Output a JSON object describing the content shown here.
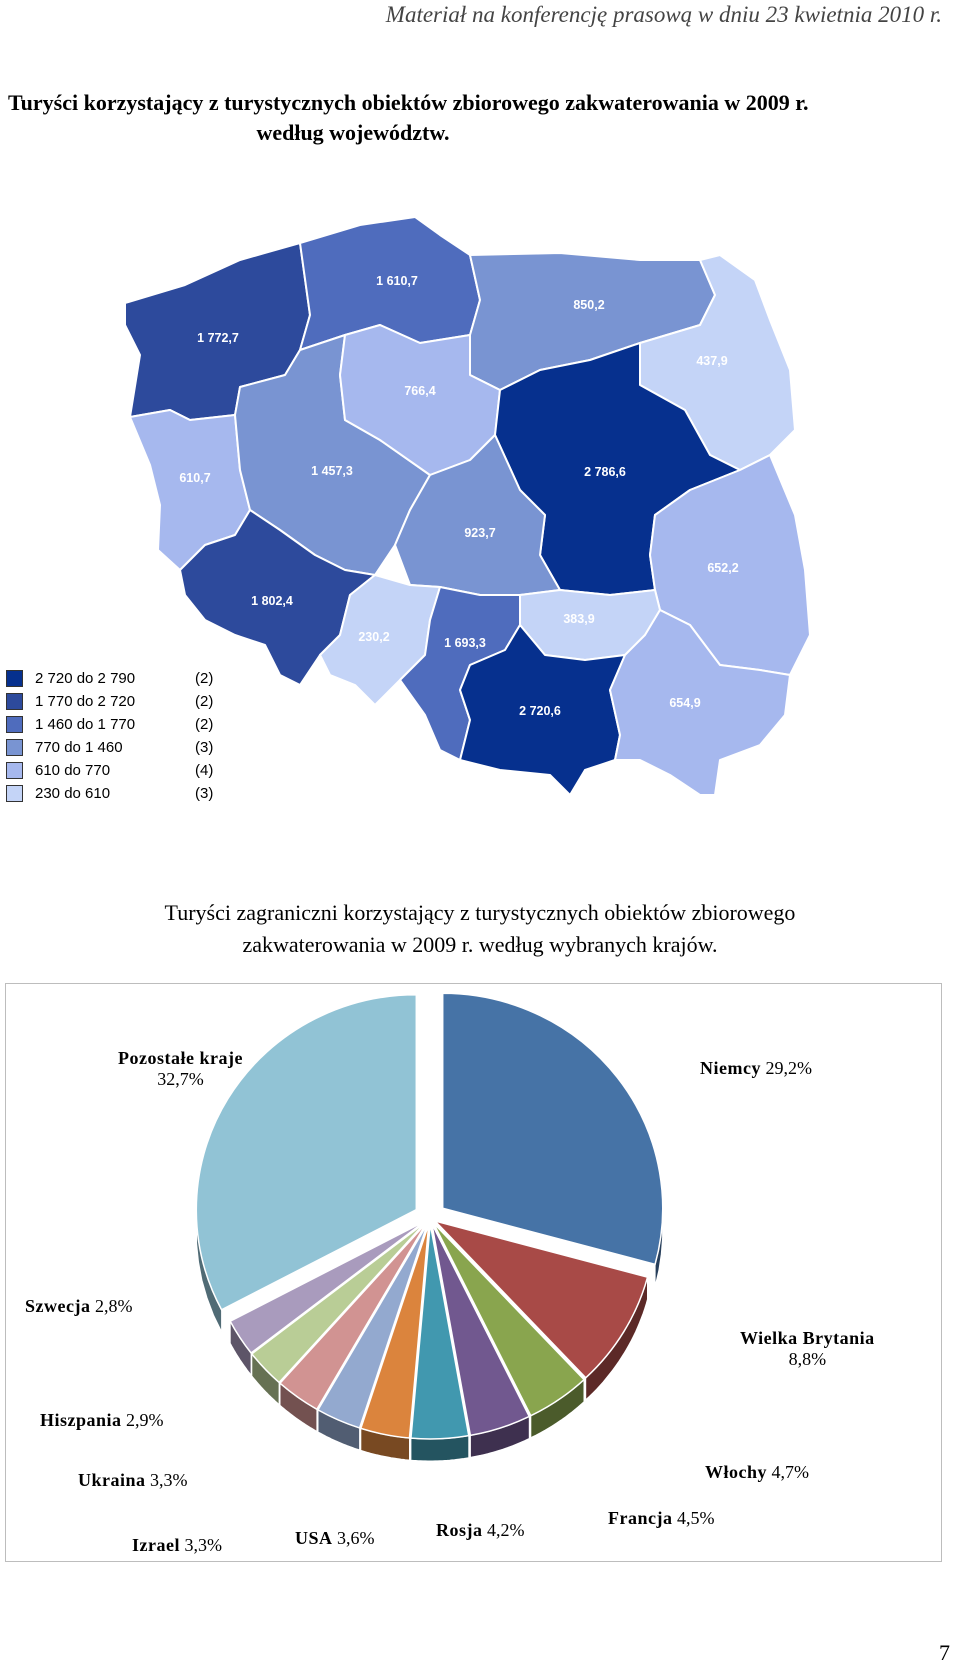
{
  "header_note": "Materiał na konferencję prasową w dniu 23 kwietnia 2010 r.",
  "title1": {
    "line1": "Turyści korzystający z turystycznych obiektów zbiorowego zakwaterowania w 2009 r.",
    "line2": "według województw."
  },
  "map": {
    "regions": [
      {
        "id": "zachodniopomorskie",
        "value": "1 772,7",
        "color": "#2d4a9c"
      },
      {
        "id": "pomorskie",
        "value": "1 610,7",
        "color": "#4f6cbd"
      },
      {
        "id": "warminsko-mazurskie",
        "value": "850,2",
        "color": "#7994d2"
      },
      {
        "id": "podlaskie",
        "value": "437,9",
        "color": "#c4d4f7"
      },
      {
        "id": "lubuskie",
        "value": "610,7",
        "color": "#a6b8ee"
      },
      {
        "id": "wielkopolskie",
        "value": "1 457,3",
        "color": "#7994d2"
      },
      {
        "id": "kujawsko-pomorskie",
        "value": "766,4",
        "color": "#a6b8ee"
      },
      {
        "id": "mazowieckie",
        "value": "2 786,6",
        "color": "#06308e"
      },
      {
        "id": "lodzkie",
        "value": "923,7",
        "color": "#7994d2"
      },
      {
        "id": "lubelskie",
        "value": "652,2",
        "color": "#a6b8ee"
      },
      {
        "id": "dolnoslaskie",
        "value": "1 802,4",
        "color": "#2d4a9c"
      },
      {
        "id": "opolskie",
        "value": "230,2",
        "color": "#c4d4f7"
      },
      {
        "id": "slaskie",
        "value": "1 693,3",
        "color": "#4f6cbd"
      },
      {
        "id": "swietokrzyskie",
        "value": "383,9",
        "color": "#c4d4f7"
      },
      {
        "id": "malopolskie",
        "value": "2 720,6",
        "color": "#06308e"
      },
      {
        "id": "podkarpackie",
        "value": "654,9",
        "color": "#a6b8ee"
      }
    ],
    "legend": [
      {
        "range": "2 720 do 2 790",
        "count": "(2)",
        "color": "#06308e"
      },
      {
        "range": "1 770 do 2 720",
        "count": "(2)",
        "color": "#2d4a9c"
      },
      {
        "range": "1 460 do 1 770",
        "count": "(2)",
        "color": "#4f6cbd"
      },
      {
        "range": "770 do 1 460",
        "count": "(3)",
        "color": "#7994d2"
      },
      {
        "range": "610 do   770",
        "count": "(4)",
        "color": "#a6b8ee"
      },
      {
        "range": "230 do   610",
        "count": "(3)",
        "color": "#c4d4f7"
      }
    ]
  },
  "title2": {
    "line1": "Turyści zagraniczni korzystający z turystycznych obiektów zbiorowego",
    "line2": "zakwaterowania w 2009 r. według wybranych krajów."
  },
  "chart_data": {
    "type": "pie",
    "slices": [
      {
        "name": "Niemcy",
        "pct": "29,2%",
        "value": 29.2,
        "color": "#4673a6"
      },
      {
        "name": "Wielka Brytania",
        "pct": "8,8%",
        "value": 8.8,
        "color": "#a84a47"
      },
      {
        "name": "Włochy",
        "pct": "4,7%",
        "value": 4.7,
        "color": "#89a54e"
      },
      {
        "name": "Francja",
        "pct": "4,5%",
        "value": 4.5,
        "color": "#71588f"
      },
      {
        "name": "Rosja",
        "pct": "4,2%",
        "value": 4.2,
        "color": "#4198af"
      },
      {
        "name": "USA",
        "pct": "3,6%",
        "value": 3.6,
        "color": "#db843d"
      },
      {
        "name": "Izrael",
        "pct": "3,3%",
        "value": 3.3,
        "color": "#93a9cf"
      },
      {
        "name": "Ukraina",
        "pct": "3,3%",
        "value": 3.3,
        "color": "#d19392"
      },
      {
        "name": "Hiszpania",
        "pct": "2,9%",
        "value": 2.9,
        "color": "#b9cd96"
      },
      {
        "name": "Szwecja",
        "pct": "2,8%",
        "value": 2.8,
        "color": "#a99bbd"
      },
      {
        "name": "Pozostałe kraje",
        "pct": "32,7%",
        "value": 32.7,
        "color": "#91c3d5"
      }
    ]
  },
  "page_number": "7"
}
